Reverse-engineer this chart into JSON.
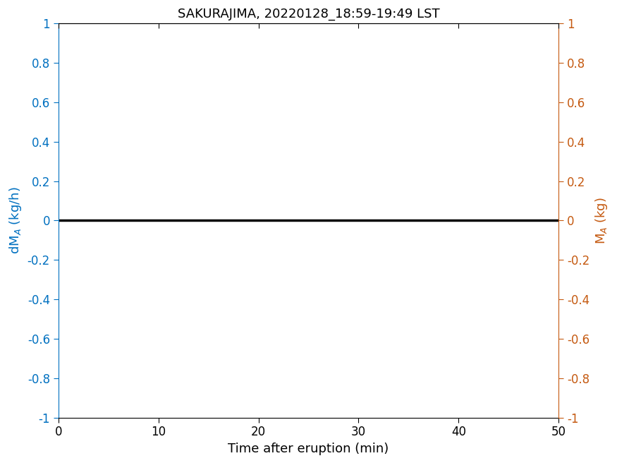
{
  "title": "SAKURAJIMA, 20220128_18:59-19:49 LST",
  "xlabel": "Time after eruption (min)",
  "xlim": [
    0,
    50
  ],
  "ylim": [
    -1,
    1
  ],
  "xticks": [
    0,
    10,
    20,
    30,
    40,
    50
  ],
  "yticks": [
    -1,
    -0.8,
    -0.6,
    -0.4,
    -0.2,
    0,
    0.2,
    0.4,
    0.6,
    0.8,
    1
  ],
  "line_x": [
    0,
    50
  ],
  "line_y": [
    0,
    0
  ],
  "line_color": "#000000",
  "line_width": 2.5,
  "left_axis_color": "#0070C0",
  "right_axis_color": "#C55A11",
  "title_fontsize": 13,
  "label_fontsize": 13,
  "tick_fontsize": 12,
  "background_color": "#ffffff"
}
